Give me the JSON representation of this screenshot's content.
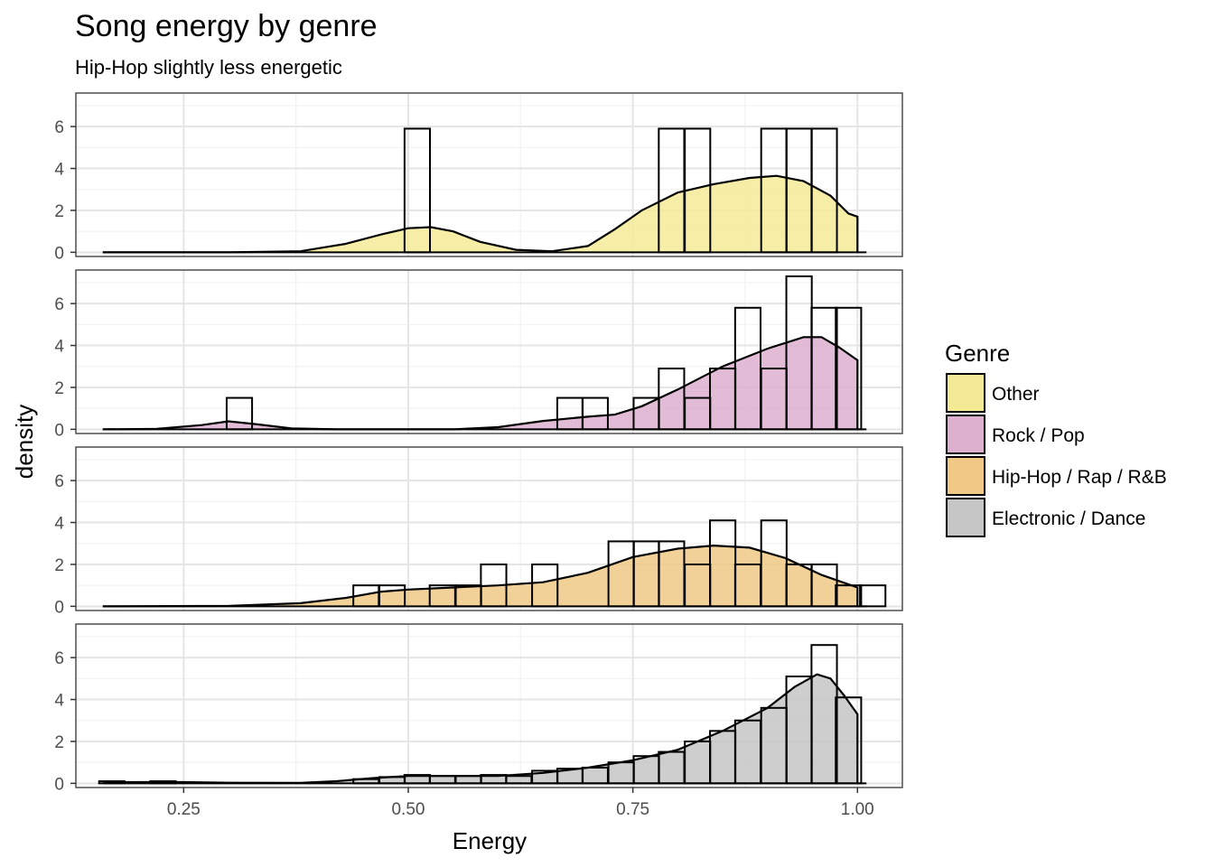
{
  "chart_data": {
    "type": "histogram-density-facets",
    "title": "Song energy by genre",
    "subtitle": "Hip-Hop slightly less energetic",
    "xlabel": "Energy",
    "ylabel": "density",
    "xlim": [
      0.13,
      1.05
    ],
    "ylim": [
      -0.2,
      7.6
    ],
    "x_ticks": [
      0.25,
      0.5,
      0.75,
      1.0
    ],
    "x_tick_labels": [
      "0.25",
      "0.50",
      "0.75",
      "1.00"
    ],
    "y_ticks": [
      0,
      2,
      4,
      6
    ],
    "y_tick_labels": [
      "0",
      "2",
      "4",
      "6"
    ],
    "bin_width": 0.0283,
    "grid": true,
    "legend": {
      "title": "Genre",
      "placement": "right",
      "entries": [
        {
          "label": "Other",
          "color": "#f4ea96"
        },
        {
          "label": "Rock / Pop",
          "color": "#ddb0cf"
        },
        {
          "label": "Hip-Hop / Rap / R&B",
          "color": "#f0c986"
        },
        {
          "label": "Electronic / Dance",
          "color": "#c6c6c6"
        }
      ]
    },
    "series": [
      {
        "name": "Other",
        "color": "#f4ea96",
        "bars": [
          [
            0.51,
            5.9
          ],
          [
            0.793,
            5.9
          ],
          [
            0.822,
            5.9
          ],
          [
            0.907,
            5.9
          ],
          [
            0.935,
            5.9
          ],
          [
            0.963,
            5.9
          ]
        ],
        "density": [
          [
            0.16,
            0.0
          ],
          [
            0.3,
            0.0
          ],
          [
            0.38,
            0.05
          ],
          [
            0.43,
            0.4
          ],
          [
            0.47,
            0.85
          ],
          [
            0.5,
            1.15
          ],
          [
            0.525,
            1.2
          ],
          [
            0.55,
            1.0
          ],
          [
            0.58,
            0.5
          ],
          [
            0.62,
            0.12
          ],
          [
            0.66,
            0.05
          ],
          [
            0.7,
            0.3
          ],
          [
            0.73,
            1.1
          ],
          [
            0.76,
            2.0
          ],
          [
            0.8,
            2.85
          ],
          [
            0.84,
            3.25
          ],
          [
            0.88,
            3.55
          ],
          [
            0.91,
            3.65
          ],
          [
            0.94,
            3.4
          ],
          [
            0.97,
            2.7
          ],
          [
            0.99,
            1.85
          ],
          [
            1.0,
            1.7
          ]
        ]
      },
      {
        "name": "Rock / Pop",
        "color": "#ddb0cf",
        "bars": [
          [
            0.312,
            1.5
          ],
          [
            0.68,
            1.5
          ],
          [
            0.708,
            1.5
          ],
          [
            0.765,
            1.5
          ],
          [
            0.793,
            2.9
          ],
          [
            0.822,
            1.5
          ],
          [
            0.85,
            2.9
          ],
          [
            0.878,
            5.8
          ],
          [
            0.907,
            2.9
          ],
          [
            0.935,
            7.3
          ],
          [
            0.963,
            5.8
          ],
          [
            0.99,
            5.8
          ]
        ],
        "density": [
          [
            0.16,
            0.0
          ],
          [
            0.22,
            0.02
          ],
          [
            0.27,
            0.2
          ],
          [
            0.3,
            0.38
          ],
          [
            0.33,
            0.25
          ],
          [
            0.37,
            0.04
          ],
          [
            0.42,
            0.0
          ],
          [
            0.55,
            0.0
          ],
          [
            0.6,
            0.1
          ],
          [
            0.65,
            0.4
          ],
          [
            0.7,
            0.6
          ],
          [
            0.73,
            0.7
          ],
          [
            0.76,
            1.1
          ],
          [
            0.8,
            1.9
          ],
          [
            0.85,
            3.0
          ],
          [
            0.9,
            3.85
          ],
          [
            0.94,
            4.4
          ],
          [
            0.96,
            4.4
          ],
          [
            0.98,
            3.9
          ],
          [
            1.0,
            3.3
          ]
        ]
      },
      {
        "name": "Hip-Hop / Rap / R&B",
        "color": "#f0c986",
        "bars": [
          [
            0.453,
            1.0
          ],
          [
            0.482,
            1.0
          ],
          [
            0.538,
            1.0
          ],
          [
            0.567,
            1.0
          ],
          [
            0.595,
            2.0
          ],
          [
            0.652,
            2.0
          ],
          [
            0.737,
            3.1
          ],
          [
            0.765,
            3.1
          ],
          [
            0.793,
            3.1
          ],
          [
            0.822,
            2.0
          ],
          [
            0.85,
            4.1
          ],
          [
            0.878,
            2.0
          ],
          [
            0.907,
            4.1
          ],
          [
            0.935,
            2.0
          ],
          [
            0.963,
            2.0
          ],
          [
            0.99,
            1.0
          ],
          [
            1.017,
            1.0
          ]
        ],
        "density": [
          [
            0.16,
            0.0
          ],
          [
            0.3,
            0.02
          ],
          [
            0.38,
            0.15
          ],
          [
            0.43,
            0.4
          ],
          [
            0.47,
            0.7
          ],
          [
            0.5,
            0.8
          ],
          [
            0.55,
            0.9
          ],
          [
            0.6,
            1.0
          ],
          [
            0.65,
            1.15
          ],
          [
            0.7,
            1.6
          ],
          [
            0.75,
            2.35
          ],
          [
            0.8,
            2.75
          ],
          [
            0.84,
            2.9
          ],
          [
            0.88,
            2.8
          ],
          [
            0.92,
            2.3
          ],
          [
            0.96,
            1.5
          ],
          [
            1.0,
            0.9
          ]
        ]
      },
      {
        "name": "Electronic / Dance",
        "color": "#c6c6c6",
        "bars": [
          [
            0.17,
            0.1
          ],
          [
            0.227,
            0.1
          ],
          [
            0.453,
            0.2
          ],
          [
            0.482,
            0.3
          ],
          [
            0.51,
            0.4
          ],
          [
            0.538,
            0.35
          ],
          [
            0.567,
            0.35
          ],
          [
            0.595,
            0.4
          ],
          [
            0.623,
            0.35
          ],
          [
            0.652,
            0.6
          ],
          [
            0.68,
            0.7
          ],
          [
            0.708,
            0.75
          ],
          [
            0.737,
            1.0
          ],
          [
            0.765,
            1.3
          ],
          [
            0.793,
            1.5
          ],
          [
            0.822,
            2.0
          ],
          [
            0.85,
            2.5
          ],
          [
            0.878,
            3.0
          ],
          [
            0.907,
            3.6
          ],
          [
            0.935,
            5.1
          ],
          [
            0.963,
            6.6
          ],
          [
            0.99,
            4.1
          ]
        ],
        "density": [
          [
            0.16,
            0.05
          ],
          [
            0.2,
            0.06
          ],
          [
            0.25,
            0.06
          ],
          [
            0.3,
            0.03
          ],
          [
            0.38,
            0.02
          ],
          [
            0.42,
            0.1
          ],
          [
            0.46,
            0.25
          ],
          [
            0.5,
            0.35
          ],
          [
            0.55,
            0.35
          ],
          [
            0.6,
            0.35
          ],
          [
            0.65,
            0.5
          ],
          [
            0.7,
            0.75
          ],
          [
            0.75,
            1.1
          ],
          [
            0.8,
            1.6
          ],
          [
            0.85,
            2.5
          ],
          [
            0.9,
            3.6
          ],
          [
            0.93,
            4.6
          ],
          [
            0.955,
            5.2
          ],
          [
            0.97,
            5.0
          ],
          [
            0.985,
            4.2
          ],
          [
            1.0,
            3.3
          ]
        ]
      }
    ]
  }
}
